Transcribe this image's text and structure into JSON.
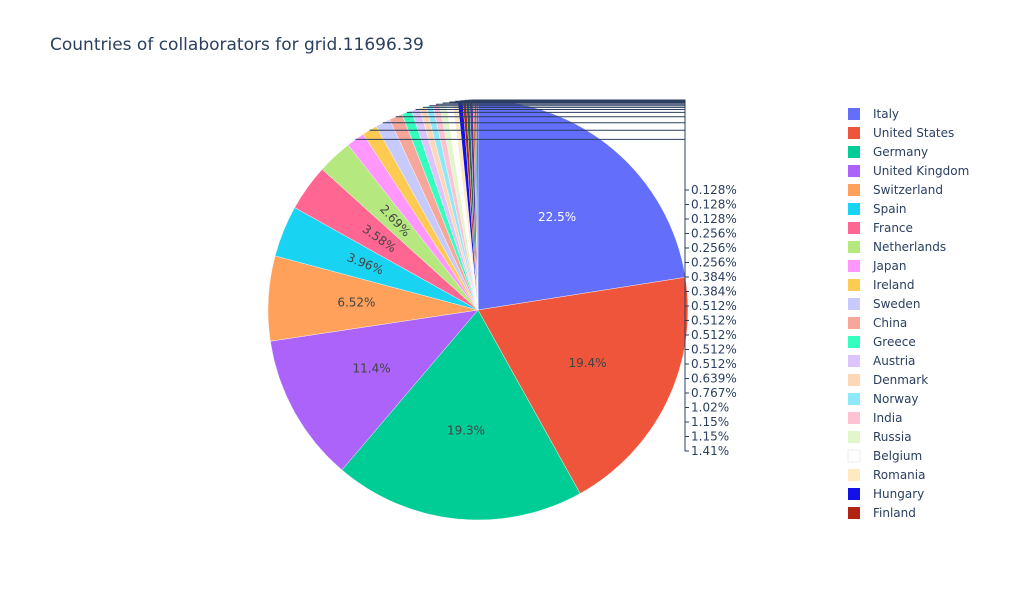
{
  "chart_data": {
    "type": "pie",
    "title": "Countries of collaborators for grid.11696.39",
    "sort": "descending",
    "direction": "clockwise",
    "start": "12 o'clock",
    "legend_position": "right",
    "categories": [
      "Italy",
      "United States",
      "Germany",
      "United Kingdom",
      "Switzerland",
      "Spain",
      "France",
      "Netherlands",
      "Japan",
      "Ireland",
      "Sweden",
      "China",
      "Greece",
      "Austria",
      "Denmark",
      "Norway",
      "India",
      "Russia",
      "Belgium",
      "Romania",
      "Hungary",
      "Finland"
    ],
    "slices": [
      {
        "label": "Italy",
        "value": 22.5,
        "text": "22.5%",
        "color": "#636efa",
        "text_position": "inside",
        "text_color": "#ffffff"
      },
      {
        "label": "United States",
        "value": 19.4,
        "text": "19.4%",
        "color": "#EF553B",
        "text_position": "inside",
        "text_color": "#444444"
      },
      {
        "label": "Germany",
        "value": 19.3,
        "text": "19.3%",
        "color": "#00cc96",
        "text_position": "inside",
        "text_color": "#444444"
      },
      {
        "label": "United Kingdom",
        "value": 11.4,
        "text": "11.4%",
        "color": "#ab63fa",
        "text_position": "inside",
        "text_color": "#444444"
      },
      {
        "label": "Switzerland",
        "value": 6.52,
        "text": "6.52%",
        "color": "#FFA15A",
        "text_position": "inside",
        "text_color": "#444444"
      },
      {
        "label": "Spain",
        "value": 3.96,
        "text": "3.96%",
        "color": "#19d3f3",
        "text_position": "inside",
        "text_color": "#444444"
      },
      {
        "label": "France",
        "value": 3.58,
        "text": "3.58%",
        "color": "#FF6692",
        "text_position": "inside",
        "text_color": "#444444"
      },
      {
        "label": "Netherlands",
        "value": 2.69,
        "text": "2.69%",
        "color": "#B6E880",
        "text_position": "inside",
        "text_color": "#444444"
      },
      {
        "label": "Japan",
        "value": 1.41,
        "text": "1.41%",
        "color": "#FF97FF",
        "text_position": "outside"
      },
      {
        "label": "Ireland",
        "value": 1.15,
        "text": "1.15%",
        "color": "#FECB52",
        "text_position": "outside"
      },
      {
        "label": "Sweden",
        "value": 1.15,
        "text": "1.15%",
        "color": "#c6cafd",
        "text_position": "outside"
      },
      {
        "label": "China",
        "value": 1.02,
        "text": "1.02%",
        "color": "#f7a799",
        "text_position": "outside"
      },
      {
        "label": "Greece",
        "value": 0.767,
        "text": "0.767%",
        "color": "#33ffbe",
        "text_position": "outside"
      },
      {
        "label": "Austria",
        "value": 0.639,
        "text": "0.639%",
        "color": "#dcc5fd",
        "text_position": "outside"
      },
      {
        "label": "Denmark",
        "value": 0.512,
        "text": "0.512%",
        "color": "#ffd6b6",
        "text_position": "outside"
      },
      {
        "label": "Norway",
        "value": 0.512,
        "text": "0.512%",
        "color": "#8de9f9",
        "text_position": "outside"
      },
      {
        "label": "India",
        "value": 0.512,
        "text": "0.512%",
        "color": "#ffc2d3",
        "text_position": "outside"
      },
      {
        "label": "Russia",
        "value": 0.512,
        "text": "0.512%",
        "color": "#e2f6cc",
        "text_position": "outside"
      },
      {
        "label": "Belgium",
        "value": 0.512,
        "text": "0.512%",
        "color": "#fffdfe",
        "text_position": "outside"
      },
      {
        "label": "Romania",
        "value": 0.384,
        "text": "0.384%",
        "color": "#ffe9c0",
        "text_position": "outside"
      },
      {
        "label": "Hungary",
        "value": 0.384,
        "text": "0.384%",
        "color": "#1212e8",
        "text_position": "outside"
      },
      {
        "label": "Finland",
        "value": 0.256,
        "text": "0.256%",
        "color": "#b22412",
        "text_position": "outside"
      },
      {
        "label": "",
        "value": 0.256,
        "text": "0.256%",
        "color": "#0f6e55",
        "text_position": "outside"
      },
      {
        "label": "",
        "value": 0.256,
        "text": "0.256%",
        "color": "#6a32a8",
        "text_position": "outside"
      },
      {
        "label": "",
        "value": 0.128,
        "text": "0.128%",
        "color": "#c8611b",
        "text_position": "outside"
      },
      {
        "label": "",
        "value": 0.128,
        "text": "0.128%",
        "color": "#0e8aa5",
        "text_position": "outside"
      },
      {
        "label": "",
        "value": 0.128,
        "text": "0.128%",
        "color": "#c2225a",
        "text_position": "outside"
      }
    ],
    "legend_entries": [
      "Italy",
      "United States",
      "Germany",
      "United Kingdom",
      "Switzerland",
      "Spain",
      "France",
      "Netherlands",
      "Japan",
      "Ireland",
      "Sweden",
      "China",
      "Greece",
      "Austria",
      "Denmark",
      "Norway",
      "India",
      "Russia",
      "Belgium",
      "Romania",
      "Hungary",
      "Finland"
    ]
  }
}
